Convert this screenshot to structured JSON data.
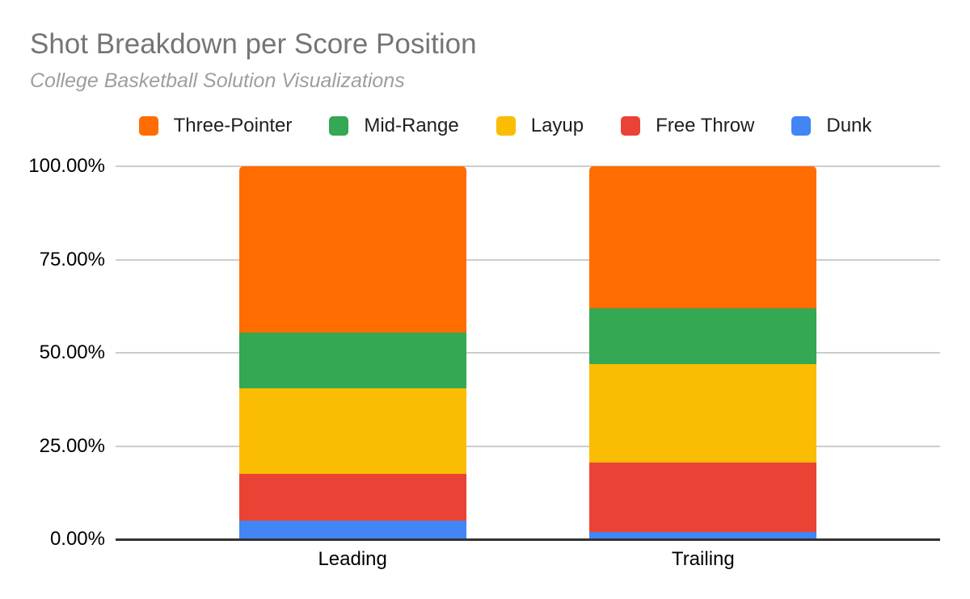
{
  "chart": {
    "title": "Shot Breakdown per Score Position",
    "subtitle": "College Basketball Solution Visualizations"
  },
  "chart_data": {
    "type": "bar",
    "variant": "100-percent-stacked-column",
    "title": "Shot Breakdown per Score Position",
    "subtitle": "College Basketball Solution Visualizations",
    "categories": [
      "Leading",
      "Trailing"
    ],
    "series": [
      {
        "name": "Three-Pointer",
        "color": "#FF6D01",
        "values": [
          44.5,
          38.0
        ]
      },
      {
        "name": "Mid-Range",
        "color": "#34A853",
        "values": [
          15.0,
          15.0
        ]
      },
      {
        "name": "Layup",
        "color": "#FBBC04",
        "values": [
          23.0,
          26.5
        ]
      },
      {
        "name": "Free Throw",
        "color": "#EA4335",
        "values": [
          12.5,
          18.5
        ]
      },
      {
        "name": "Dunk",
        "color": "#4285F4",
        "values": [
          5.0,
          2.0
        ]
      }
    ],
    "stack_order_bottom_to_top": [
      "Dunk",
      "Free Throw",
      "Layup",
      "Mid-Range",
      "Three-Pointer"
    ],
    "y_axis": {
      "range": [
        0,
        100
      ],
      "ticks": [
        0,
        25,
        50,
        75,
        100
      ],
      "tick_labels": [
        "0.00%",
        "25.00%",
        "50.00%",
        "75.00%",
        "100.00%"
      ],
      "format": "percent"
    },
    "legend_position": "top",
    "grid": true
  },
  "colors": {
    "grid": "#cccccc",
    "axis": "#333333",
    "title": "#757575",
    "subtitle": "#9e9e9e",
    "axis_text": "#000000",
    "legend_text": "#1f1f1f",
    "background": "#ffffff"
  }
}
